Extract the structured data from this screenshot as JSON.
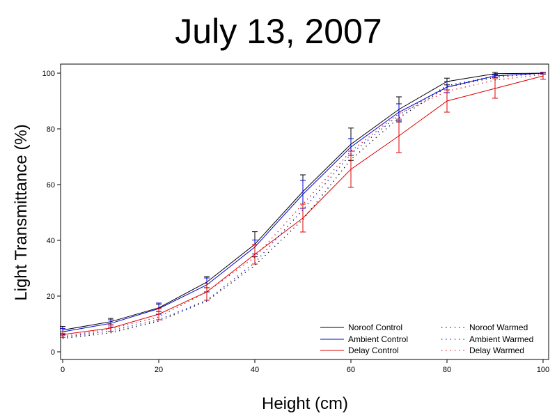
{
  "chart_data": {
    "type": "line",
    "title": "July 13, 2007",
    "xlabel": "Height (cm)",
    "ylabel": "Light Transmittance (%)",
    "xlim": [
      0,
      100
    ],
    "ylim": [
      0,
      100
    ],
    "xticks": [
      0,
      20,
      40,
      60,
      80,
      100
    ],
    "yticks": [
      0,
      20,
      40,
      60,
      80,
      100
    ],
    "x": [
      0,
      10,
      20,
      30,
      40,
      50,
      60,
      70,
      80,
      90,
      100
    ],
    "grid": false,
    "legend_position": "bottom-right",
    "series": [
      {
        "name": "Noroof Control",
        "color": "#000000",
        "style": "solid",
        "values": [
          7.8,
          10.8,
          15.8,
          25.0,
          38.6,
          57.5,
          74.5,
          87.0,
          97.0,
          99.8,
          100
        ],
        "err": [
          1.3,
          1.2,
          1.3,
          2.0,
          4.5,
          6.0,
          5.8,
          4.5,
          1.2,
          0.5,
          0.3
        ]
      },
      {
        "name": "Ambient Control",
        "color": "#0000cc",
        "style": "solid",
        "values": [
          7.2,
          10.2,
          15.5,
          24.0,
          37.6,
          56.5,
          73.5,
          86.0,
          95.0,
          99.0,
          100
        ],
        "err": [
          1.2,
          1.3,
          2.0,
          2.5,
          2.5,
          5.0,
          3.0,
          3.0,
          2.0,
          0.6,
          0.3
        ]
      },
      {
        "name": "Delay Control",
        "color": "#dd0000",
        "style": "solid",
        "values": [
          6.2,
          8.5,
          13.5,
          21.5,
          35.0,
          48.0,
          65.5,
          77.5,
          90.0,
          94.5,
          99.0
        ],
        "err": [
          1.0,
          1.2,
          2.0,
          3.0,
          3.5,
          5.0,
          6.5,
          6.0,
          4.0,
          3.5,
          1.2
        ]
      },
      {
        "name": "Noroof Warmed",
        "color": "#000000",
        "style": "dotted",
        "values": [
          4.8,
          6.8,
          11.0,
          18.2,
          31.0,
          47.5,
          69.0,
          84.0,
          95.0,
          98.5,
          100
        ],
        "err": [
          0.0,
          0.0,
          0.0,
          0.0,
          0.0,
          0.0,
          0.0,
          0.0,
          0.0,
          0.0,
          0.0
        ]
      },
      {
        "name": "Ambient Warmed",
        "color": "#0000cc",
        "style": "dotted",
        "values": [
          5.2,
          7.5,
          11.5,
          18.5,
          32.0,
          51.0,
          71.0,
          85.0,
          95.5,
          99.0,
          100
        ],
        "err": [
          0.0,
          0.0,
          0.0,
          0.0,
          0.0,
          0.0,
          0.0,
          0.0,
          0.0,
          0.0,
          0.0
        ]
      },
      {
        "name": "Delay Warmed",
        "color": "#dd0000",
        "style": "dotted",
        "values": [
          5.5,
          8.2,
          12.5,
          21.5,
          34.0,
          53.0,
          72.0,
          85.5,
          93.5,
          97.5,
          99.5
        ],
        "err": [
          0.0,
          0.0,
          0.0,
          0.0,
          0.0,
          0.0,
          0.0,
          0.0,
          0.0,
          0.0,
          0.0
        ]
      }
    ]
  }
}
